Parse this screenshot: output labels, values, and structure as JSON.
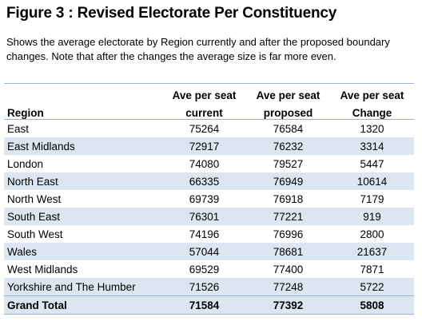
{
  "title": "Figure 3 : Revised Electorate Per Constituency",
  "caption": "Shows the average electorate by Region currently and after the proposed boundary changes. Note that after the changes the average size is far more even.",
  "table": {
    "headers": {
      "region": "Region",
      "current_top": "Ave per seat",
      "current_bottom": "current",
      "proposed_top": "Ave per seat",
      "proposed_bottom": "proposed",
      "change_top": "Ave per seat",
      "change_bottom": "Change"
    },
    "rows": [
      {
        "region": "East",
        "current": "75264",
        "proposed": "76584",
        "change": "1320"
      },
      {
        "region": "East Midlands",
        "current": "72917",
        "proposed": "76232",
        "change": "3314"
      },
      {
        "region": "London",
        "current": "74080",
        "proposed": "79527",
        "change": "5447"
      },
      {
        "region": "North East",
        "current": "66335",
        "proposed": "76949",
        "change": "10614"
      },
      {
        "region": "North West",
        "current": "69739",
        "proposed": "76918",
        "change": "7179"
      },
      {
        "region": "South East",
        "current": "76301",
        "proposed": "77221",
        "change": "919"
      },
      {
        "region": "South West",
        "current": "74196",
        "proposed": "76996",
        "change": "2800"
      },
      {
        "region": "Wales",
        "current": "57044",
        "proposed": "78681",
        "change": "21637"
      },
      {
        "region": "West Midlands",
        "current": "69529",
        "proposed": "77400",
        "change": "7871"
      },
      {
        "region": "Yorkshire and The Humber",
        "current": "71526",
        "proposed": "77248",
        "change": "5722"
      }
    ],
    "total": {
      "region": "Grand Total",
      "current": "71584",
      "proposed": "77392",
      "change": "5808"
    }
  },
  "colors": {
    "band": "#dce6f1",
    "rule": "#95b3d7"
  }
}
